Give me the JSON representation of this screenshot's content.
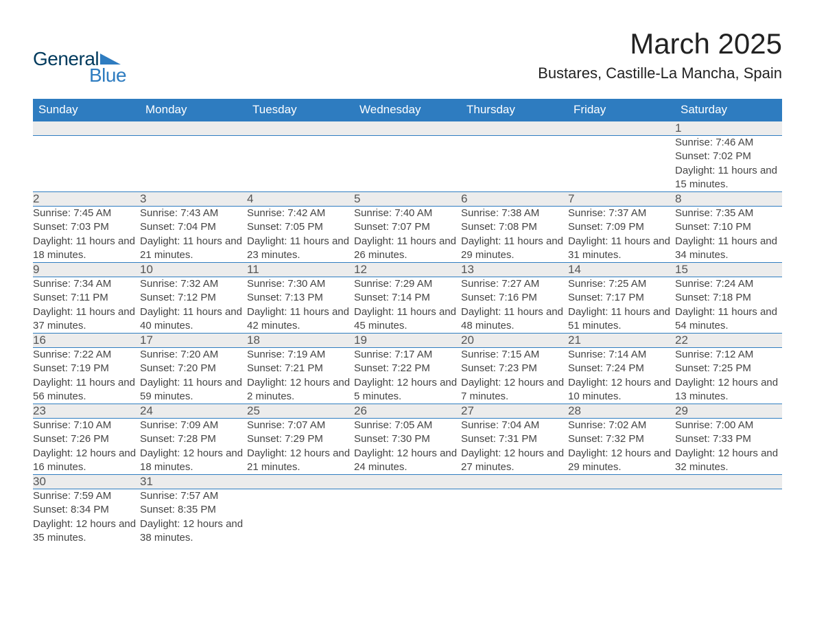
{
  "brand": {
    "word1": "General",
    "word2": "Blue",
    "triangle_color": "#2e7cc0",
    "word1_color": "#003a5d",
    "word2_color": "#2e7cc0"
  },
  "title": "March 2025",
  "location": "Bustares, Castille-La Mancha, Spain",
  "accent_color": "#2e7cc0",
  "header_bg": "#2e7cc0",
  "header_text_color": "#ffffff",
  "daynum_bg": "#ececec",
  "text_color": "#444444",
  "day_headers": [
    "Sunday",
    "Monday",
    "Tuesday",
    "Wednesday",
    "Thursday",
    "Friday",
    "Saturday"
  ],
  "weeks": [
    [
      null,
      null,
      null,
      null,
      null,
      null,
      {
        "n": "1",
        "sunrise": "7:46 AM",
        "sunset": "7:02 PM",
        "daylight": "11 hours and 15 minutes."
      }
    ],
    [
      {
        "n": "2",
        "sunrise": "7:45 AM",
        "sunset": "7:03 PM",
        "daylight": "11 hours and 18 minutes."
      },
      {
        "n": "3",
        "sunrise": "7:43 AM",
        "sunset": "7:04 PM",
        "daylight": "11 hours and 21 minutes."
      },
      {
        "n": "4",
        "sunrise": "7:42 AM",
        "sunset": "7:05 PM",
        "daylight": "11 hours and 23 minutes."
      },
      {
        "n": "5",
        "sunrise": "7:40 AM",
        "sunset": "7:07 PM",
        "daylight": "11 hours and 26 minutes."
      },
      {
        "n": "6",
        "sunrise": "7:38 AM",
        "sunset": "7:08 PM",
        "daylight": "11 hours and 29 minutes."
      },
      {
        "n": "7",
        "sunrise": "7:37 AM",
        "sunset": "7:09 PM",
        "daylight": "11 hours and 31 minutes."
      },
      {
        "n": "8",
        "sunrise": "7:35 AM",
        "sunset": "7:10 PM",
        "daylight": "11 hours and 34 minutes."
      }
    ],
    [
      {
        "n": "9",
        "sunrise": "7:34 AM",
        "sunset": "7:11 PM",
        "daylight": "11 hours and 37 minutes."
      },
      {
        "n": "10",
        "sunrise": "7:32 AM",
        "sunset": "7:12 PM",
        "daylight": "11 hours and 40 minutes."
      },
      {
        "n": "11",
        "sunrise": "7:30 AM",
        "sunset": "7:13 PM",
        "daylight": "11 hours and 42 minutes."
      },
      {
        "n": "12",
        "sunrise": "7:29 AM",
        "sunset": "7:14 PM",
        "daylight": "11 hours and 45 minutes."
      },
      {
        "n": "13",
        "sunrise": "7:27 AM",
        "sunset": "7:16 PM",
        "daylight": "11 hours and 48 minutes."
      },
      {
        "n": "14",
        "sunrise": "7:25 AM",
        "sunset": "7:17 PM",
        "daylight": "11 hours and 51 minutes."
      },
      {
        "n": "15",
        "sunrise": "7:24 AM",
        "sunset": "7:18 PM",
        "daylight": "11 hours and 54 minutes."
      }
    ],
    [
      {
        "n": "16",
        "sunrise": "7:22 AM",
        "sunset": "7:19 PM",
        "daylight": "11 hours and 56 minutes."
      },
      {
        "n": "17",
        "sunrise": "7:20 AM",
        "sunset": "7:20 PM",
        "daylight": "11 hours and 59 minutes."
      },
      {
        "n": "18",
        "sunrise": "7:19 AM",
        "sunset": "7:21 PM",
        "daylight": "12 hours and 2 minutes."
      },
      {
        "n": "19",
        "sunrise": "7:17 AM",
        "sunset": "7:22 PM",
        "daylight": "12 hours and 5 minutes."
      },
      {
        "n": "20",
        "sunrise": "7:15 AM",
        "sunset": "7:23 PM",
        "daylight": "12 hours and 7 minutes."
      },
      {
        "n": "21",
        "sunrise": "7:14 AM",
        "sunset": "7:24 PM",
        "daylight": "12 hours and 10 minutes."
      },
      {
        "n": "22",
        "sunrise": "7:12 AM",
        "sunset": "7:25 PM",
        "daylight": "12 hours and 13 minutes."
      }
    ],
    [
      {
        "n": "23",
        "sunrise": "7:10 AM",
        "sunset": "7:26 PM",
        "daylight": "12 hours and 16 minutes."
      },
      {
        "n": "24",
        "sunrise": "7:09 AM",
        "sunset": "7:28 PM",
        "daylight": "12 hours and 18 minutes."
      },
      {
        "n": "25",
        "sunrise": "7:07 AM",
        "sunset": "7:29 PM",
        "daylight": "12 hours and 21 minutes."
      },
      {
        "n": "26",
        "sunrise": "7:05 AM",
        "sunset": "7:30 PM",
        "daylight": "12 hours and 24 minutes."
      },
      {
        "n": "27",
        "sunrise": "7:04 AM",
        "sunset": "7:31 PM",
        "daylight": "12 hours and 27 minutes."
      },
      {
        "n": "28",
        "sunrise": "7:02 AM",
        "sunset": "7:32 PM",
        "daylight": "12 hours and 29 minutes."
      },
      {
        "n": "29",
        "sunrise": "7:00 AM",
        "sunset": "7:33 PM",
        "daylight": "12 hours and 32 minutes."
      }
    ],
    [
      {
        "n": "30",
        "sunrise": "7:59 AM",
        "sunset": "8:34 PM",
        "daylight": "12 hours and 35 minutes."
      },
      {
        "n": "31",
        "sunrise": "7:57 AM",
        "sunset": "8:35 PM",
        "daylight": "12 hours and 38 minutes."
      },
      null,
      null,
      null,
      null,
      null
    ]
  ],
  "labels": {
    "sunrise": "Sunrise: ",
    "sunset": "Sunset: ",
    "daylight": "Daylight: "
  }
}
